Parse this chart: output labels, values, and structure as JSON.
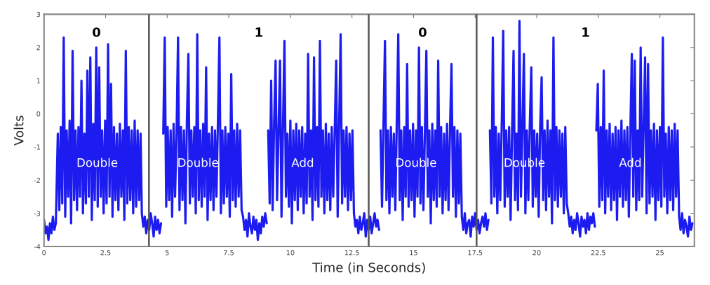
{
  "chart_data": {
    "type": "line",
    "xlabel": "Time (in Seconds)",
    "ylabel": "Volts",
    "line_style": "solid",
    "xlim": [
      0,
      26.4
    ],
    "xticks": [
      0,
      2.5,
      5,
      7.5,
      10,
      12.5,
      15,
      17.5,
      20,
      22.5,
      25
    ],
    "ylim": [
      -4,
      3
    ],
    "yticks": [
      -4,
      -3,
      -2,
      -1,
      0,
      1,
      2,
      3
    ],
    "ref_lines": [
      {
        "axis": "x",
        "value": 4.26,
        "color": "#555555"
      },
      {
        "axis": "x",
        "value": 13.18,
        "color": "#555555"
      },
      {
        "axis": "x",
        "value": 17.56,
        "color": "#555555"
      }
    ],
    "annotations": [
      "0",
      "1",
      "0",
      "1",
      {
        "text": "Double",
        "x": 2.16,
        "y": -1.5
      },
      {
        "text": "Double",
        "x": 6.25,
        "y": -1.5
      },
      {
        "text": "Add",
        "x": 10.5,
        "y": -1.5
      },
      {
        "text": "Double",
        "x": 15.1,
        "y": -1.5
      },
      {
        "text": "Double",
        "x": 19.5,
        "y": -1.5
      },
      {
        "text": "Add",
        "x": 23.8,
        "y": -1.5
      }
    ],
    "series": [
      {
        "color": "#1c1cf0",
        "x": [
          0.0,
          0.06,
          0.12,
          0.18,
          0.24,
          0.3,
          0.36,
          0.42,
          0.48,
          0.56,
          0.62,
          0.68,
          0.74,
          0.8,
          0.86,
          0.92,
          0.98,
          1.04,
          1.1,
          1.16,
          1.22,
          1.28,
          1.34,
          1.4,
          1.46,
          1.52,
          1.58,
          1.64,
          1.7,
          1.76,
          1.82,
          1.88,
          1.94,
          2.0,
          2.06,
          2.12,
          2.18,
          2.24,
          2.3,
          2.36,
          2.42,
          2.48,
          2.54,
          2.6,
          2.66,
          2.72,
          2.78,
          2.84,
          2.9,
          2.96,
          3.02,
          3.08,
          3.14,
          3.2,
          3.26,
          3.32,
          3.38,
          3.44,
          3.5,
          3.56,
          3.62,
          3.68,
          3.74,
          3.8,
          3.86,
          3.92,
          3.97,
          4.03,
          4.09,
          4.15,
          4.21,
          4.27,
          4.33,
          4.39,
          4.45,
          4.51,
          4.57,
          4.63,
          4.69,
          4.75
        ],
        "values": [
          -3.2,
          -3.6,
          -3.4,
          -3.8,
          -3.3,
          -3.6,
          -3.1,
          -3.5,
          -3.3,
          -0.6,
          -2.9,
          -0.4,
          -2.7,
          2.3,
          -3.1,
          -0.5,
          -2.5,
          -0.2,
          -3.3,
          1.9,
          -2.6,
          -0.5,
          -2.9,
          -0.4,
          -2.5,
          1.0,
          -3.0,
          -0.6,
          -2.7,
          1.3,
          -2.5,
          1.7,
          -3.2,
          -0.3,
          -2.6,
          2.0,
          -2.8,
          1.4,
          -2.5,
          -0.5,
          -3.0,
          -0.2,
          -2.7,
          2.1,
          -2.5,
          0.9,
          -3.1,
          -0.4,
          -2.6,
          -0.6,
          -2.9,
          -0.3,
          -2.5,
          -0.5,
          -3.2,
          1.9,
          -2.7,
          -0.4,
          -2.6,
          -0.5,
          -3.0,
          -0.2,
          -2.8,
          -0.5,
          -2.6,
          -0.6,
          -3.0,
          -3.4,
          -3.1,
          -3.6,
          -3.2,
          -3.5,
          -3.0,
          -3.3,
          -3.7,
          -3.1,
          -3.5,
          -3.2,
          -3.6,
          -3.3
        ]
      },
      {
        "color": "#1c1cf0",
        "x": [
          4.84,
          4.9,
          4.96,
          5.02,
          5.08,
          5.14,
          5.2,
          5.26,
          5.32,
          5.38,
          5.44,
          5.5,
          5.56,
          5.62,
          5.68,
          5.74,
          5.8,
          5.86,
          5.92,
          5.98,
          6.04,
          6.1,
          6.16,
          6.22,
          6.28,
          6.34,
          6.4,
          6.46,
          6.52,
          6.58,
          6.64,
          6.7,
          6.76,
          6.82,
          6.88,
          6.94,
          7.0,
          7.06,
          7.12,
          7.18,
          7.24,
          7.3,
          7.36,
          7.42,
          7.48,
          7.54,
          7.6,
          7.66,
          7.72,
          7.78,
          7.84,
          7.9,
          7.96,
          8.02,
          8.08,
          8.14,
          8.2,
          8.26,
          8.32,
          8.38,
          8.44,
          8.5,
          8.56,
          8.62,
          8.68,
          8.74,
          8.8,
          8.86,
          8.92,
          8.98,
          9.04
        ],
        "values": [
          -0.6,
          2.3,
          -2.8,
          -0.4,
          -2.6,
          -0.5,
          -3.1,
          -0.3,
          -2.5,
          -0.6,
          2.3,
          -2.9,
          -0.4,
          -2.6,
          -0.5,
          -3.3,
          -0.2,
          1.8,
          -2.7,
          -0.5,
          -2.5,
          -0.4,
          -3.0,
          2.4,
          -2.6,
          -0.5,
          -2.8,
          -0.3,
          -2.5,
          1.4,
          -3.2,
          -0.6,
          -2.6,
          -0.4,
          -2.9,
          -0.5,
          -2.5,
          -0.2,
          2.3,
          -3.0,
          -0.5,
          -2.7,
          -0.4,
          -2.5,
          -0.6,
          -3.1,
          1.2,
          -2.6,
          -0.5,
          -2.8,
          -0.3,
          -2.5,
          -0.5,
          -2.9,
          -3.1,
          -3.5,
          -3.2,
          -3.7,
          -3.0,
          -3.4,
          -3.6,
          -3.1,
          -3.5,
          -3.2,
          -3.8,
          -3.3,
          -3.6,
          -3.1,
          -3.4,
          -3.0,
          -3.3
        ]
      },
      {
        "color": "#1c1cf0",
        "x": [
          9.1,
          9.16,
          9.22,
          9.28,
          9.34,
          9.4,
          9.46,
          9.52,
          9.58,
          9.64,
          9.7,
          9.76,
          9.82,
          9.88,
          9.94,
          10.0,
          10.06,
          10.12,
          10.18,
          10.24,
          10.3,
          10.36,
          10.42,
          10.48,
          10.54,
          10.6,
          10.66,
          10.72,
          10.78,
          10.84,
          10.9,
          10.96,
          11.02,
          11.08,
          11.14,
          11.2,
          11.26,
          11.32,
          11.38,
          11.44,
          11.5,
          11.56,
          11.62,
          11.68,
          11.74,
          11.8,
          11.86,
          11.92,
          11.98,
          12.04,
          12.1,
          12.16,
          12.22,
          12.28,
          12.34,
          12.4,
          12.46,
          12.52,
          12.58,
          12.64,
          12.7,
          12.76,
          12.82,
          12.88,
          12.94,
          13.0,
          13.06,
          13.12,
          13.18,
          13.24,
          13.3,
          13.36,
          13.42,
          13.48,
          13.54,
          13.6
        ],
        "values": [
          -0.5,
          -2.7,
          1.0,
          -2.9,
          -0.3,
          1.6,
          -2.6,
          -0.5,
          1.6,
          -3.1,
          -0.4,
          2.2,
          -2.5,
          -0.6,
          -2.8,
          -0.2,
          -3.3,
          -0.5,
          -2.6,
          -0.3,
          -2.9,
          -0.5,
          -2.5,
          -0.4,
          -3.0,
          -0.6,
          -2.7,
          1.8,
          -2.5,
          -0.5,
          -3.2,
          1.7,
          -2.6,
          -0.4,
          -2.8,
          2.2,
          -2.5,
          -0.5,
          -3.0,
          -0.3,
          -2.6,
          -0.6,
          -2.9,
          -0.4,
          -2.5,
          -0.5,
          1.6,
          -3.1,
          -0.3,
          2.4,
          -2.7,
          -0.5,
          -2.5,
          -0.4,
          -2.9,
          -0.6,
          -2.6,
          -0.5,
          -3.0,
          -3.4,
          -3.2,
          -3.6,
          -3.1,
          -3.5,
          -3.3,
          -3.0,
          -3.7,
          -3.2,
          -3.5,
          -3.1,
          -3.6,
          -3.3,
          -3.0,
          -3.4,
          -3.2,
          -3.5
        ]
      },
      {
        "color": "#1c1cf0",
        "x": [
          13.66,
          13.72,
          13.78,
          13.84,
          13.9,
          13.96,
          14.02,
          14.08,
          14.14,
          14.2,
          14.26,
          14.32,
          14.38,
          14.44,
          14.5,
          14.56,
          14.62,
          14.68,
          14.74,
          14.8,
          14.86,
          14.92,
          14.98,
          15.04,
          15.1,
          15.16,
          15.22,
          15.28,
          15.34,
          15.4,
          15.46,
          15.52,
          15.58,
          15.64,
          15.7,
          15.76,
          15.82,
          15.88,
          15.94,
          16.0,
          16.06,
          16.12,
          16.18,
          16.24,
          16.3,
          16.36,
          16.42,
          16.48,
          16.54,
          16.6,
          16.66,
          16.72,
          16.78,
          16.84,
          16.9,
          16.96,
          17.02,
          17.08,
          17.14,
          17.2,
          17.26,
          17.32,
          17.38,
          17.44,
          17.5,
          17.56,
          17.62,
          17.68,
          17.74,
          17.8,
          17.86,
          17.92,
          17.98,
          18.04
        ],
        "values": [
          -0.5,
          -2.8,
          -0.3,
          2.2,
          -2.6,
          -0.5,
          -3.0,
          -0.4,
          -2.5,
          -0.6,
          -2.9,
          -0.2,
          2.4,
          -2.6,
          -0.5,
          -3.2,
          -0.4,
          -2.5,
          1.5,
          -2.8,
          -0.5,
          -2.6,
          -0.3,
          -3.1,
          -0.5,
          -2.5,
          2.0,
          -2.7,
          -0.4,
          -2.9,
          -0.6,
          1.9,
          -2.5,
          -0.5,
          -3.3,
          -0.3,
          -2.6,
          -0.5,
          -2.8,
          1.6,
          -2.5,
          -0.4,
          -3.0,
          -0.6,
          -2.6,
          -0.3,
          -2.9,
          -0.5,
          1.5,
          -2.5,
          -0.4,
          -3.1,
          -0.5,
          -2.7,
          -0.6,
          -3.1,
          -3.5,
          -3.0,
          -3.6,
          -3.3,
          -3.2,
          -3.7,
          -3.1,
          -3.4,
          -3.0,
          -3.5,
          -3.2,
          -3.6,
          -3.3,
          -3.1,
          -3.4,
          -3.0,
          -3.5,
          -3.2
        ]
      },
      {
        "color": "#1c1cf0",
        "x": [
          18.1,
          18.16,
          18.22,
          18.28,
          18.34,
          18.4,
          18.46,
          18.52,
          18.58,
          18.64,
          18.7,
          18.76,
          18.82,
          18.88,
          18.94,
          19.0,
          19.06,
          19.12,
          19.18,
          19.24,
          19.3,
          19.36,
          19.42,
          19.48,
          19.54,
          19.6,
          19.66,
          19.72,
          19.78,
          19.84,
          19.9,
          19.96,
          20.02,
          20.08,
          20.14,
          20.2,
          20.26,
          20.32,
          20.38,
          20.44,
          20.5,
          20.56,
          20.62,
          20.68,
          20.74,
          20.8,
          20.86,
          20.92,
          20.98,
          21.04,
          21.1,
          21.16,
          21.22,
          21.28,
          21.34,
          21.4,
          21.46,
          21.52,
          21.58,
          21.64,
          21.7,
          21.76,
          21.82,
          21.88,
          21.94,
          22.0,
          22.06,
          22.12,
          22.18,
          22.24,
          22.3,
          22.36
        ],
        "values": [
          -0.5,
          -2.7,
          2.3,
          -2.5,
          -0.4,
          -3.0,
          -0.6,
          -2.6,
          -0.3,
          2.5,
          -2.8,
          -0.5,
          -2.5,
          -0.4,
          -3.2,
          -0.5,
          1.9,
          -2.6,
          -0.6,
          -2.9,
          2.8,
          -2.5,
          -0.4,
          1.8,
          -3.0,
          -0.5,
          -2.6,
          -0.3,
          1.4,
          -2.8,
          -0.5,
          -2.5,
          -0.6,
          -3.1,
          -0.4,
          1.1,
          -2.6,
          -0.5,
          -2.9,
          -0.2,
          -2.5,
          -0.5,
          -3.3,
          2.3,
          -2.6,
          -0.4,
          -2.8,
          -0.5,
          -2.5,
          -0.6,
          -3.0,
          -0.4,
          -2.7,
          -3.0,
          -3.4,
          -3.1,
          -3.6,
          -3.2,
          -3.5,
          -3.0,
          -3.3,
          -3.7,
          -3.1,
          -3.4,
          -3.2,
          -3.6,
          -3.0,
          -3.5,
          -3.1,
          -3.3,
          -3.0,
          -3.4
        ]
      },
      {
        "color": "#1c1cf0",
        "x": [
          22.42,
          22.48,
          22.54,
          22.6,
          22.66,
          22.72,
          22.78,
          22.84,
          22.9,
          22.96,
          23.02,
          23.08,
          23.14,
          23.2,
          23.26,
          23.32,
          23.38,
          23.44,
          23.5,
          23.56,
          23.62,
          23.68,
          23.74,
          23.8,
          23.86,
          23.92,
          23.98,
          24.04,
          24.1,
          24.16,
          24.22,
          24.28,
          24.34,
          24.4,
          24.46,
          24.52,
          24.58,
          24.64,
          24.7,
          24.76,
          24.82,
          24.88,
          24.94,
          25.0,
          25.06,
          25.12,
          25.18,
          25.24,
          25.3,
          25.36,
          25.42,
          25.48,
          25.54,
          25.6,
          25.66,
          25.72,
          25.78,
          25.84,
          25.9,
          25.96,
          26.02,
          26.08,
          26.14,
          26.2,
          26.26,
          26.32
        ],
        "values": [
          -0.5,
          0.9,
          -2.8,
          -0.4,
          -2.6,
          1.3,
          -3.0,
          -0.5,
          -2.5,
          -0.3,
          -2.9,
          -0.6,
          -2.6,
          -0.4,
          -3.2,
          -0.5,
          -2.5,
          -0.2,
          -2.8,
          -0.5,
          -2.6,
          -0.4,
          -3.1,
          -0.6,
          1.8,
          -2.5,
          1.6,
          -2.9,
          -0.5,
          -2.6,
          2.0,
          -2.5,
          -0.4,
          1.7,
          -3.0,
          1.5,
          -2.7,
          -0.5,
          -2.5,
          -0.3,
          -3.2,
          -0.5,
          -2.6,
          -0.4,
          -2.8,
          2.3,
          -2.5,
          -0.6,
          -3.0,
          -0.4,
          -2.6,
          -0.5,
          -2.9,
          -0.3,
          -2.5,
          -0.5,
          -3.1,
          -3.5,
          -3.0,
          -3.6,
          -3.2,
          -3.4,
          -3.7,
          -3.1,
          -3.5,
          -3.3
        ]
      }
    ]
  }
}
